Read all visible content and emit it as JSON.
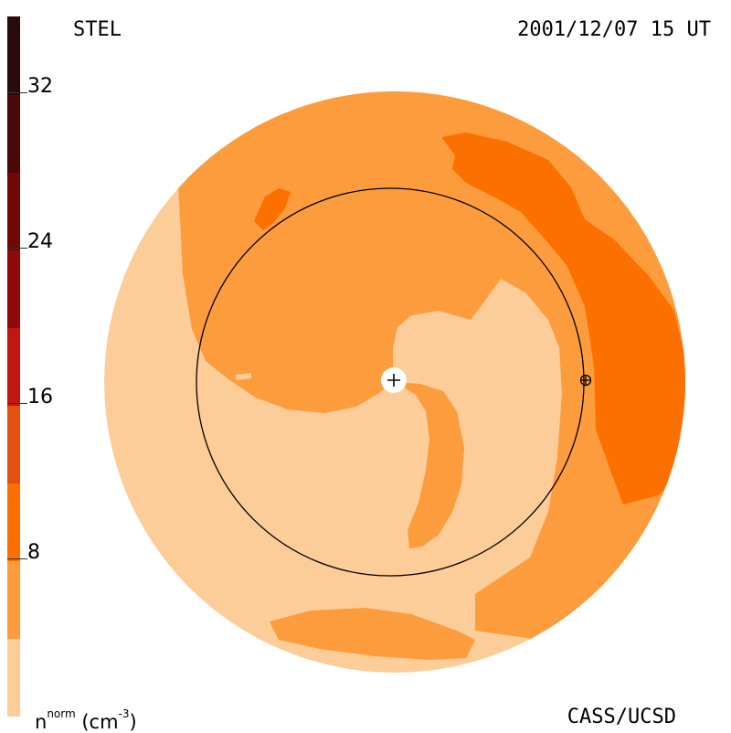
{
  "header": {
    "label_left": "STEL",
    "label_right": "2001/12/07 15 UT"
  },
  "footer": {
    "unit_base": "n",
    "unit_sup": "norm",
    "unit_rest": " (cm",
    "unit_exp": "-3",
    "unit_close": ")",
    "credit": "CASS/UCSD"
  },
  "colors": {
    "level_0_4": "#fccc99",
    "level_4_8": "#fc9c3c",
    "level_8_12": "#fc7000",
    "level_12_16": "#e45010",
    "level_16_20": "#c01810",
    "level_20_24": "#900808",
    "level_24_28": "#700808",
    "level_28_32": "#4a0808",
    "level_32_36": "#2a0a0a",
    "orbit": "#000000"
  },
  "chart_data": {
    "type": "heatmap",
    "title": "STEL",
    "timestamp": "2001/12/07 15 UT",
    "colorbar": {
      "label": "n^norm (cm^-3)",
      "ticks": [
        8,
        16,
        24,
        32
      ],
      "range": [
        0,
        36
      ],
      "levels": [
        {
          "from": 0,
          "to": 4,
          "color": "#fccc99"
        },
        {
          "from": 4,
          "to": 8,
          "color": "#fc9c3c"
        },
        {
          "from": 8,
          "to": 12,
          "color": "#fc7000"
        },
        {
          "from": 12,
          "to": 16,
          "color": "#e45010"
        },
        {
          "from": 16,
          "to": 20,
          "color": "#c01810"
        },
        {
          "from": 20,
          "to": 24,
          "color": "#900808"
        },
        {
          "from": 24,
          "to": 28,
          "color": "#700808"
        },
        {
          "from": 28,
          "to": 32,
          "color": "#4a0808"
        },
        {
          "from": 32,
          "to": 36,
          "color": "#2a0a0a"
        }
      ]
    },
    "markers": [
      "sun-center",
      "earth"
    ]
  }
}
